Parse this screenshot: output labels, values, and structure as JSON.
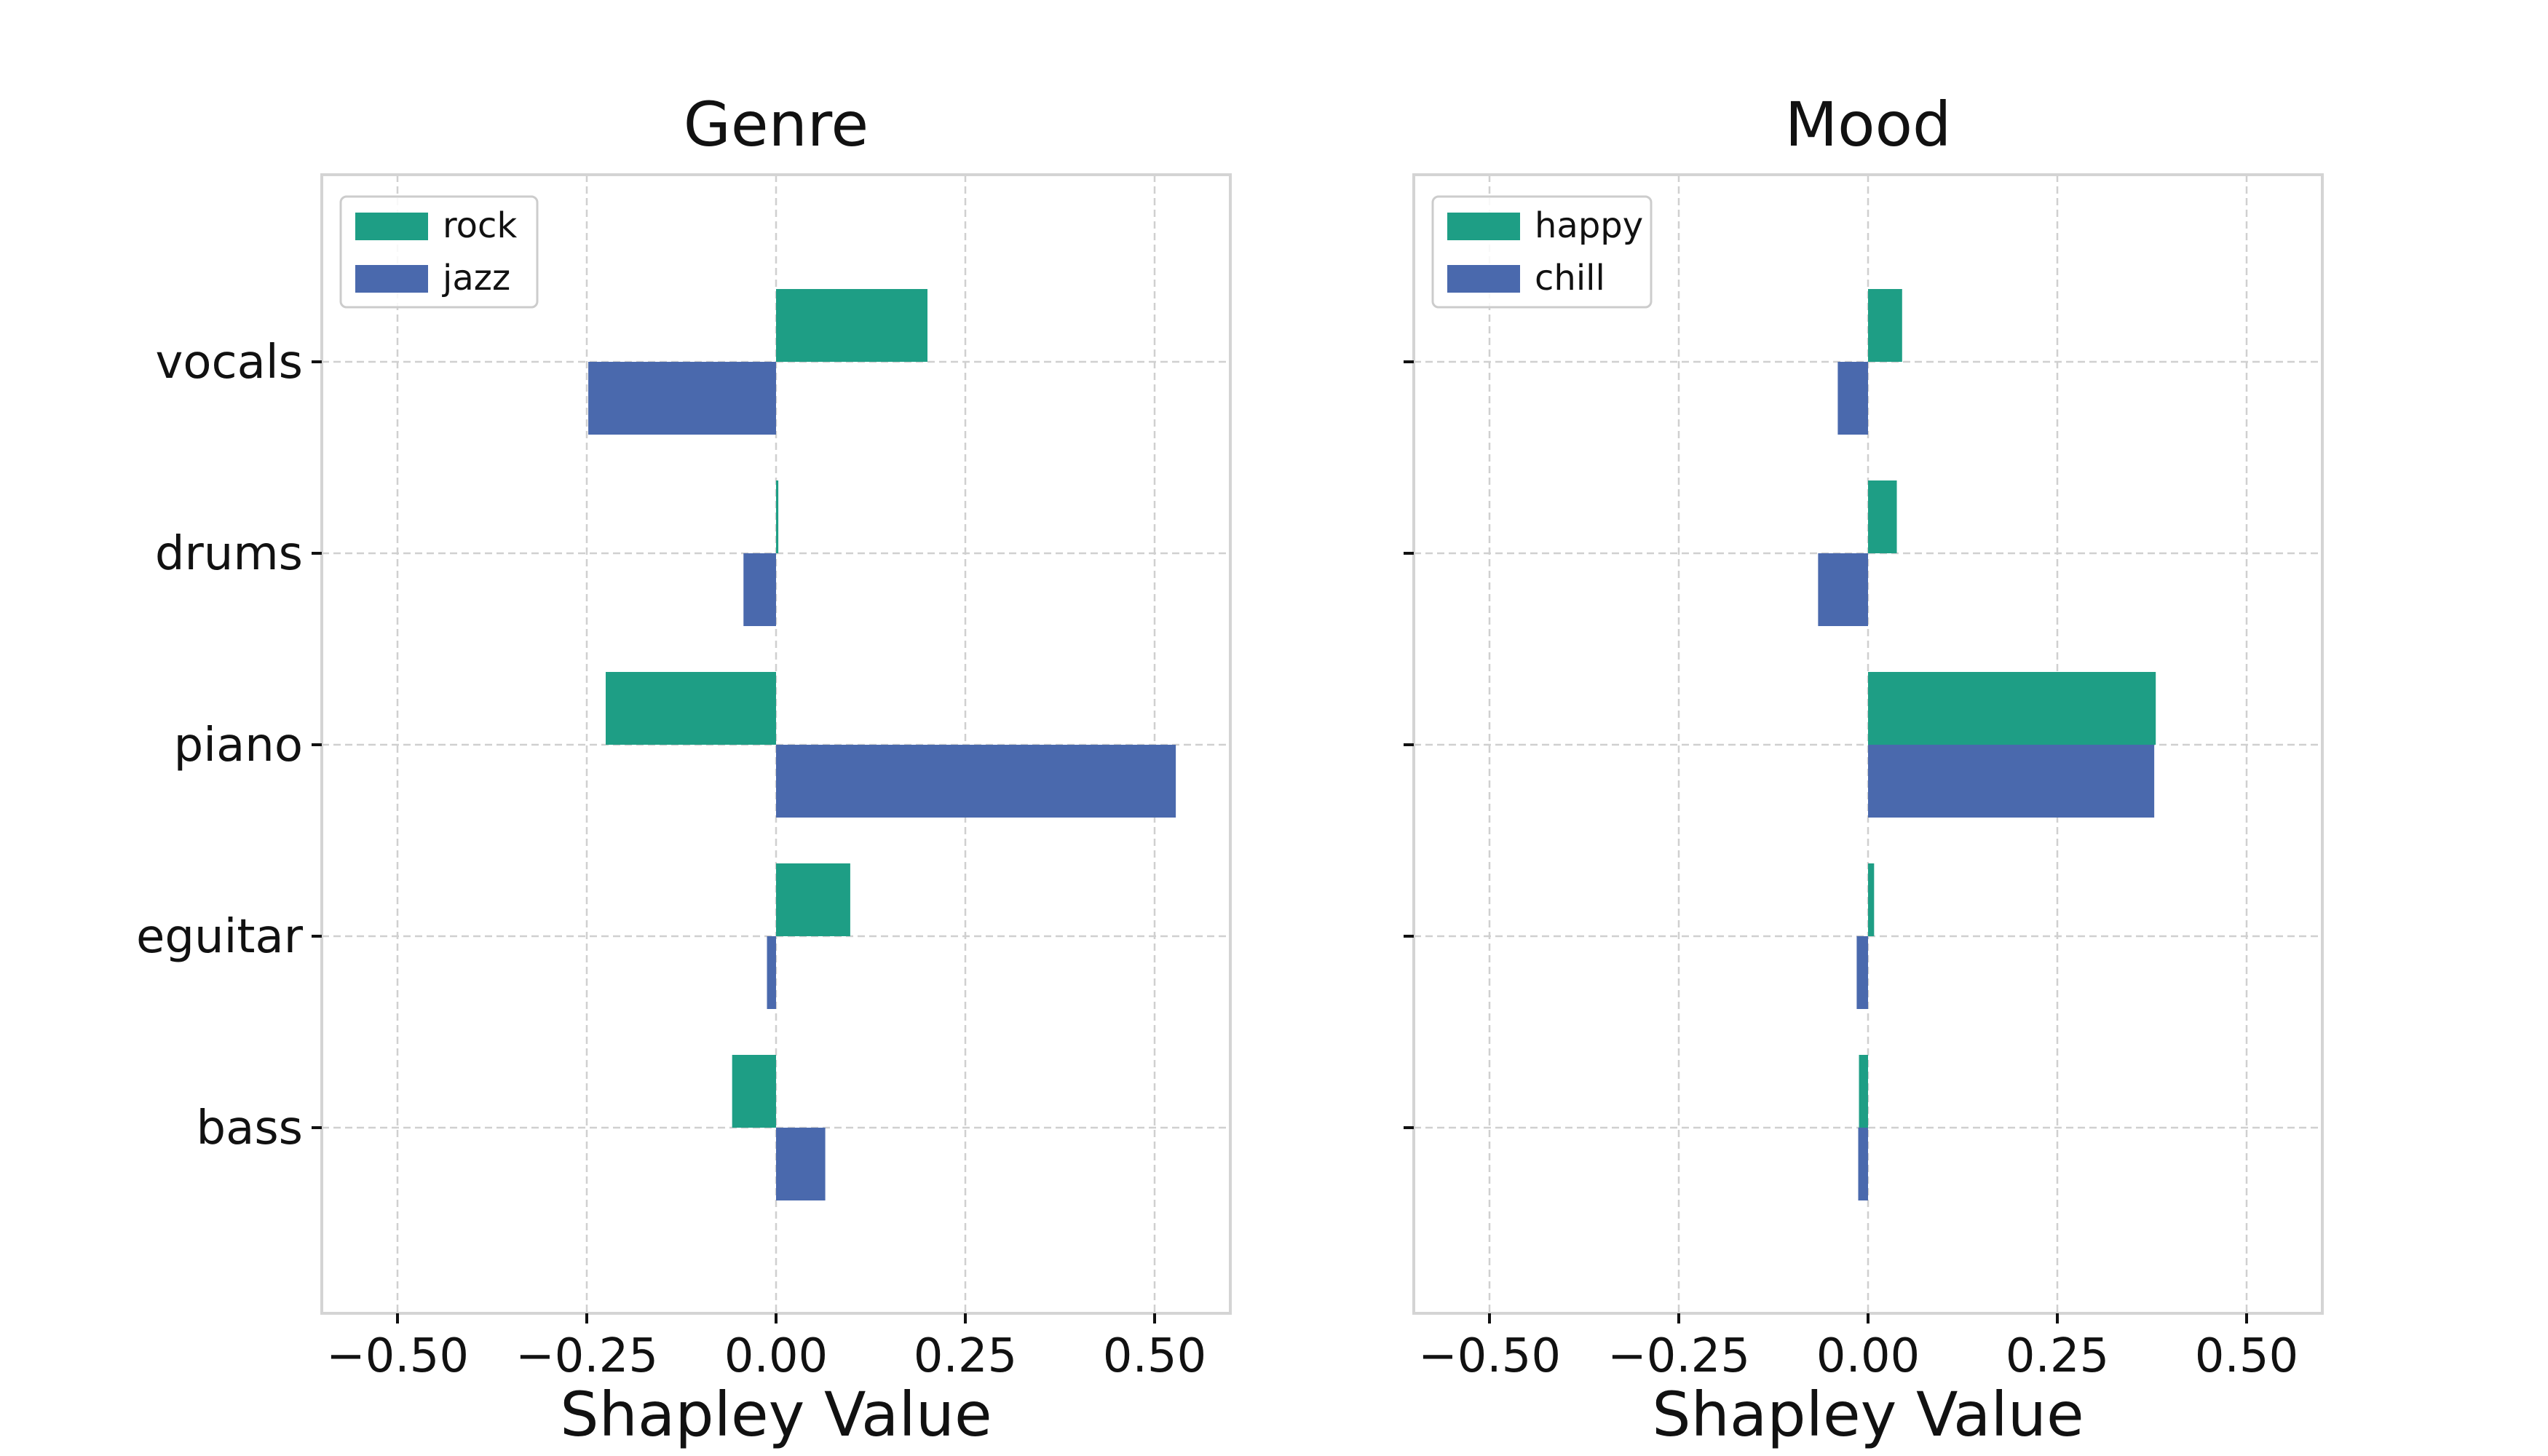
{
  "chart_data": [
    {
      "type": "bar",
      "orientation": "horizontal",
      "title": "Genre",
      "xlabel": "Shapley Value",
      "ylabel": "",
      "categories": [
        "vocals",
        "drums",
        "piano",
        "eguitar",
        "bass"
      ],
      "xlim": [
        -0.6,
        0.6
      ],
      "xticks": [
        -0.5,
        -0.25,
        0.0,
        0.25,
        0.5
      ],
      "xtick_labels": [
        "−0.50",
        "−0.25",
        "0.00",
        "0.25",
        "0.50"
      ],
      "grid": true,
      "legend_position": "top-left",
      "show_category_labels": true,
      "series": [
        {
          "name": "rock",
          "color": "#1e9e85",
          "values": [
            0.2,
            0.003,
            -0.225,
            0.098,
            -0.058
          ]
        },
        {
          "name": "jazz",
          "color": "#4a69ad",
          "values": [
            -0.248,
            -0.043,
            0.528,
            -0.012,
            0.065
          ]
        }
      ]
    },
    {
      "type": "bar",
      "orientation": "horizontal",
      "title": "Mood",
      "xlabel": "Shapley Value",
      "ylabel": "",
      "categories": [
        "vocals",
        "drums",
        "piano",
        "eguitar",
        "bass"
      ],
      "xlim": [
        -0.6,
        0.6
      ],
      "xticks": [
        -0.5,
        -0.25,
        0.0,
        0.25,
        0.5
      ],
      "xtick_labels": [
        "−0.50",
        "−0.25",
        "0.00",
        "0.25",
        "0.50"
      ],
      "grid": true,
      "legend_position": "top-left",
      "show_category_labels": false,
      "series": [
        {
          "name": "happy",
          "color": "#1e9e85",
          "values": [
            0.045,
            0.038,
            0.38,
            0.008,
            -0.012
          ]
        },
        {
          "name": "chill",
          "color": "#4a69ad",
          "values": [
            -0.04,
            -0.066,
            0.378,
            -0.015,
            -0.013
          ]
        }
      ]
    }
  ]
}
